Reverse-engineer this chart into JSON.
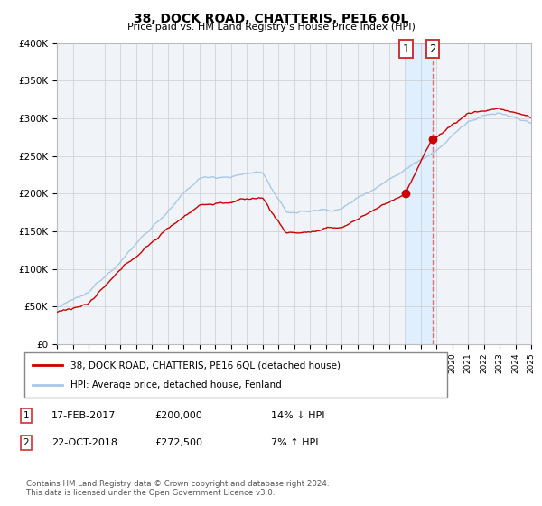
{
  "title": "38, DOCK ROAD, CHATTERIS, PE16 6QL",
  "subtitle": "Price paid vs. HM Land Registry's House Price Index (HPI)",
  "ylim": [
    0,
    400000
  ],
  "yticks": [
    0,
    50000,
    100000,
    150000,
    200000,
    250000,
    300000,
    350000,
    400000
  ],
  "ytick_labels": [
    "£0",
    "£50K",
    "£100K",
    "£150K",
    "£200K",
    "£250K",
    "£300K",
    "£350K",
    "£400K"
  ],
  "hpi_color": "#a8c8e8",
  "price_color": "#cc0000",
  "sale1_t": 2017.083,
  "sale1_price": 200000,
  "sale1_date": "17-FEB-2017",
  "sale1_hpi_pct": "14% ↓ HPI",
  "sale2_t": 2018.792,
  "sale2_price": 272500,
  "sale2_date": "22-OCT-2018",
  "sale2_hpi_pct": "7% ↑ HPI",
  "legend_label_price": "38, DOCK ROAD, CHATTERIS, PE16 6QL (detached house)",
  "legend_label_hpi": "HPI: Average price, detached house, Fenland",
  "footer": "Contains HM Land Registry data © Crown copyright and database right 2024.\nThis data is licensed under the Open Government Licence v3.0.",
  "background_color": "#f0f4f8",
  "grid_color": "#cccccc",
  "x_start_year": 1995,
  "x_end_year": 2025,
  "span_color": "#ddeeff",
  "vline_color": "#dd6666"
}
